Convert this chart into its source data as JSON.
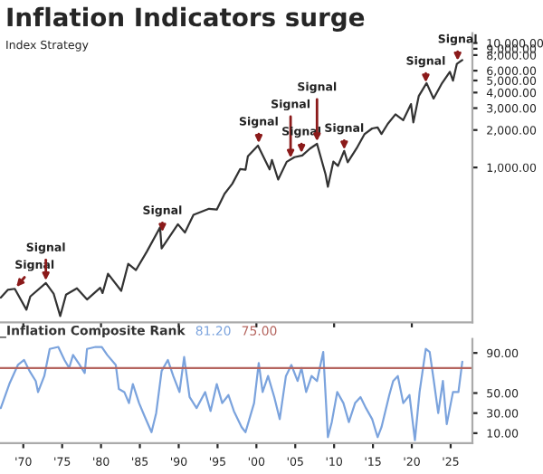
{
  "chart_data": [
    {
      "type": "line",
      "title": "Inflation Indicators surge",
      "subtitle": "Index Strategy",
      "log": "y",
      "tick_labels": "y",
      "legend": false,
      "grid": false,
      "xlim": [
        1967,
        2027.8
      ],
      "ylim": [
        57,
        12000
      ],
      "yticks": [
        {
          "value": 1000,
          "label": "1,000.00"
        },
        {
          "value": 2000,
          "label": "2,000.00"
        },
        {
          "value": 3000,
          "label": "3,000.00"
        },
        {
          "value": 4000,
          "label": "4,000.00"
        },
        {
          "value": 5000,
          "label": "5,000.00"
        },
        {
          "value": 6000,
          "label": "6,000.00"
        },
        {
          "value": 8000,
          "label": "8,000.00"
        },
        {
          "value": 9000,
          "label": "9,000.00"
        },
        {
          "value": 10000,
          "label": "10,000.00"
        }
      ],
      "series": [
        {
          "color": "#333333",
          "x": [
            1967.1,
            1968.0,
            1968.9,
            1970.4,
            1970.9,
            1972.9,
            1973.9,
            1974.75,
            1975.5,
            1976.9,
            1978.2,
            1979.9,
            1980.2,
            1980.9,
            1982.6,
            1983.5,
            1984.5,
            1985.9,
            1987.6,
            1987.8,
            1989.9,
            1990.8,
            1991.9,
            1993.9,
            1994.9,
            1995.9,
            1996.9,
            1997.9,
            1998.6,
            1998.9,
            2000.2,
            2001.7,
            2002.0,
            2002.8,
            2003.9,
            2004.9,
            2005.9,
            2006.9,
            2007.8,
            2008.9,
            2009.2,
            2009.9,
            2010.5,
            2011.3,
            2011.75,
            2012.9,
            2013.9,
            2014.9,
            2015.6,
            2016.1,
            2016.9,
            2017.9,
            2018.9,
            2019.9,
            2020.2,
            2020.9,
            2021.9,
            2022.8,
            2023.9,
            2024.9,
            2025.3,
            2025.8,
            2026.5
          ],
          "values": [
            90,
            104,
            106,
            72,
            92,
            118,
            97,
            64,
            95,
            107,
            87,
            108,
            98,
            140,
            102,
            168,
            150,
            211,
            330,
            224,
            350,
            300,
            417,
            466,
            459,
            615,
            740,
            970,
            960,
            1229,
            1500,
            965,
            1150,
            800,
            1111,
            1211,
            1248,
            1418,
            1550,
            880,
            700,
            1115,
            1030,
            1360,
            1100,
            1426,
            1848,
            2059,
            2100,
            1860,
            2239,
            2674,
            2400,
            3231,
            2300,
            3756,
            4766,
            3580,
            4770,
            5880,
            4980,
            6800,
            7300
          ]
        }
      ],
      "annotations": [
        {
          "text": "Signal",
          "x": 1968.9,
          "y": 106
        },
        {
          "text": "Signal",
          "x": 1972.9,
          "y": 118
        },
        {
          "text": "Signal",
          "x": 1987.9,
          "y": 290
        },
        {
          "text": "Signal",
          "x": 2000.3,
          "y": 1500
        },
        {
          "text": "Signal",
          "x": 2004.4,
          "y": 1140
        },
        {
          "text": "Signal",
          "x": 2005.8,
          "y": 1250
        },
        {
          "text": "Signal",
          "x": 2007.8,
          "y": 1550
        },
        {
          "text": "Signal",
          "x": 2011.3,
          "y": 1330
        },
        {
          "text": "Signal",
          "x": 2021.8,
          "y": 4600
        },
        {
          "text": "Signal",
          "x": 2025.9,
          "y": 6900
        }
      ]
    },
    {
      "type": "line",
      "title": "_Inflation Composite Rank",
      "tick_labels": "xy",
      "legend": false,
      "grid": false,
      "xlim": [
        1967,
        2027.8
      ],
      "ylim": [
        0,
        104
      ],
      "xticks": [
        {
          "value": 1970,
          "label": "'70"
        },
        {
          "value": 1975,
          "label": "'75"
        },
        {
          "value": 1980,
          "label": "'80"
        },
        {
          "value": 1985,
          "label": "'85"
        },
        {
          "value": 1990,
          "label": "'90"
        },
        {
          "value": 1995,
          "label": "'95"
        },
        {
          "value": 2000,
          "label": "'00"
        },
        {
          "value": 2005,
          "label": "'05"
        },
        {
          "value": 2010,
          "label": "'10"
        },
        {
          "value": 2015,
          "label": "'15"
        },
        {
          "value": 2020,
          "label": "'20"
        },
        {
          "value": 2025,
          "label": "'25"
        }
      ],
      "yticks": [
        {
          "value": 10,
          "label": "10.00"
        },
        {
          "value": 30,
          "label": "30.00"
        },
        {
          "value": 50,
          "label": "50.00"
        },
        {
          "value": 90,
          "label": "90.00"
        }
      ],
      "annotations": [
        "81.20"
      ],
      "ref_lines": [
        {
          "axis": "y",
          "value": 75,
          "label": "75.00",
          "color": "#b5655f"
        }
      ],
      "series": [
        {
          "color": "#7ba3dd",
          "x": [
            1967.1,
            1968.2,
            1969.3,
            1970.1,
            1970.8,
            1971.6,
            1971.9,
            1972.7,
            1973.4,
            1974.5,
            1975.3,
            1975.9,
            1976.4,
            1977.1,
            1977.9,
            1978.2,
            1979.3,
            1980.1,
            1980.8,
            1981.9,
            1982.3,
            1983.0,
            1983.6,
            1984.1,
            1984.9,
            1985.6,
            1986.5,
            1987.1,
            1987.8,
            1988.6,
            1989.3,
            1990.1,
            1990.7,
            1991.4,
            1992.3,
            1993.4,
            1994.1,
            1994.9,
            1995.6,
            1996.4,
            1997.1,
            1998.1,
            1998.6,
            1999.7,
            2000.3,
            2000.8,
            2001.5,
            2002.3,
            2003.0,
            2003.8,
            2004.5,
            2005.3,
            2005.8,
            2006.4,
            2007.1,
            2007.8,
            2008.6,
            2009.2,
            2009.7,
            2010.4,
            2011.2,
            2011.9,
            2012.7,
            2013.4,
            2014.1,
            2014.9,
            2015.6,
            2016.1,
            2017.1,
            2017.6,
            2018.2,
            2018.9,
            2019.7,
            2020.4,
            2021.0,
            2021.8,
            2022.3,
            2022.8,
            2023.4,
            2024.0,
            2024.5,
            2025.3,
            2026.0,
            2026.5
          ],
          "values": [
            35,
            59,
            78,
            83,
            72,
            62,
            51,
            67,
            94,
            96,
            83,
            75,
            88,
            80,
            70,
            94,
            96,
            96,
            88,
            78,
            54,
            51,
            40,
            59,
            40,
            27,
            11,
            30,
            72,
            83,
            67,
            51,
            86,
            46,
            35,
            51,
            32,
            59,
            40,
            48,
            32,
            16,
            11,
            40,
            80,
            51,
            67,
            46,
            24,
            67,
            78,
            62,
            75,
            51,
            67,
            62,
            91,
            6,
            21,
            51,
            40,
            21,
            40,
            46,
            35,
            24,
            6,
            16,
            48,
            62,
            67,
            40,
            48,
            3,
            51,
            94,
            91,
            64,
            30,
            62,
            19,
            51,
            51,
            81.2
          ]
        }
      ]
    }
  ]
}
